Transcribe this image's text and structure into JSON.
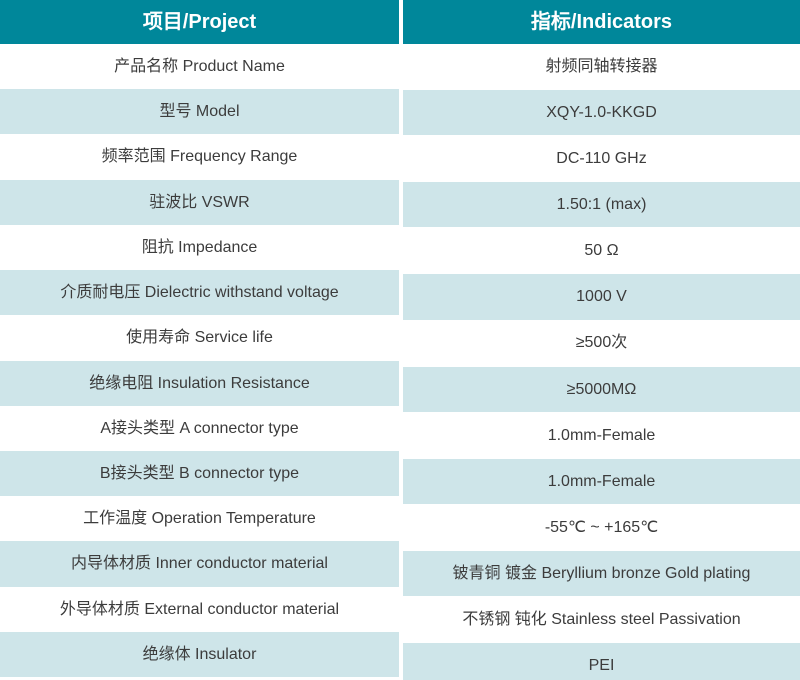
{
  "table": {
    "headers": [
      {
        "label": "项目/Project"
      },
      {
        "label": "指标/Indicators"
      }
    ],
    "rows": [
      {
        "project": "产品名称 Product Name",
        "indicator": "射频同轴转接器"
      },
      {
        "project": "型号 Model",
        "indicator": "XQY-1.0-KKGD"
      },
      {
        "project": "频率范围 Frequency Range",
        "indicator": "DC-110 GHz"
      },
      {
        "project": "驻波比 VSWR",
        "indicator": "1.50:1 (max)"
      },
      {
        "project": "阻抗 Impedance",
        "indicator": "50 Ω"
      },
      {
        "project": "介质耐电压 Dielectric withstand voltage",
        "indicator": "1000 V"
      },
      {
        "project": "使用寿命 Service life",
        "indicator": "≥500次"
      },
      {
        "project": "绝缘电阻 Insulation Resistance",
        "indicator": "≥5000MΩ"
      },
      {
        "project": "A接头类型 A connector type",
        "indicator": "1.0mm-Female"
      },
      {
        "project": "B接头类型 B connector type",
        "indicator": "1.0mm-Female"
      },
      {
        "project": "工作温度 Operation Temperature",
        "indicator": "-55℃ ~ +165℃"
      },
      {
        "project": "内导体材质 Inner conductor material",
        "indicator": "铍青铜 镀金 Beryllium bronze Gold plating"
      },
      {
        "project": "外导体材质 External conductor material",
        "indicator": "不锈钢 钝化 Stainless steel Passivation"
      },
      {
        "project": "绝缘体 Insulator",
        "indicator": "PEI"
      }
    ],
    "colors": {
      "header_bg": "#00879a",
      "header_text": "#ffffff",
      "row_bg": "#ffffff",
      "row_alt_bg": "#cee5e9",
      "text": "#3c3c3c"
    }
  }
}
